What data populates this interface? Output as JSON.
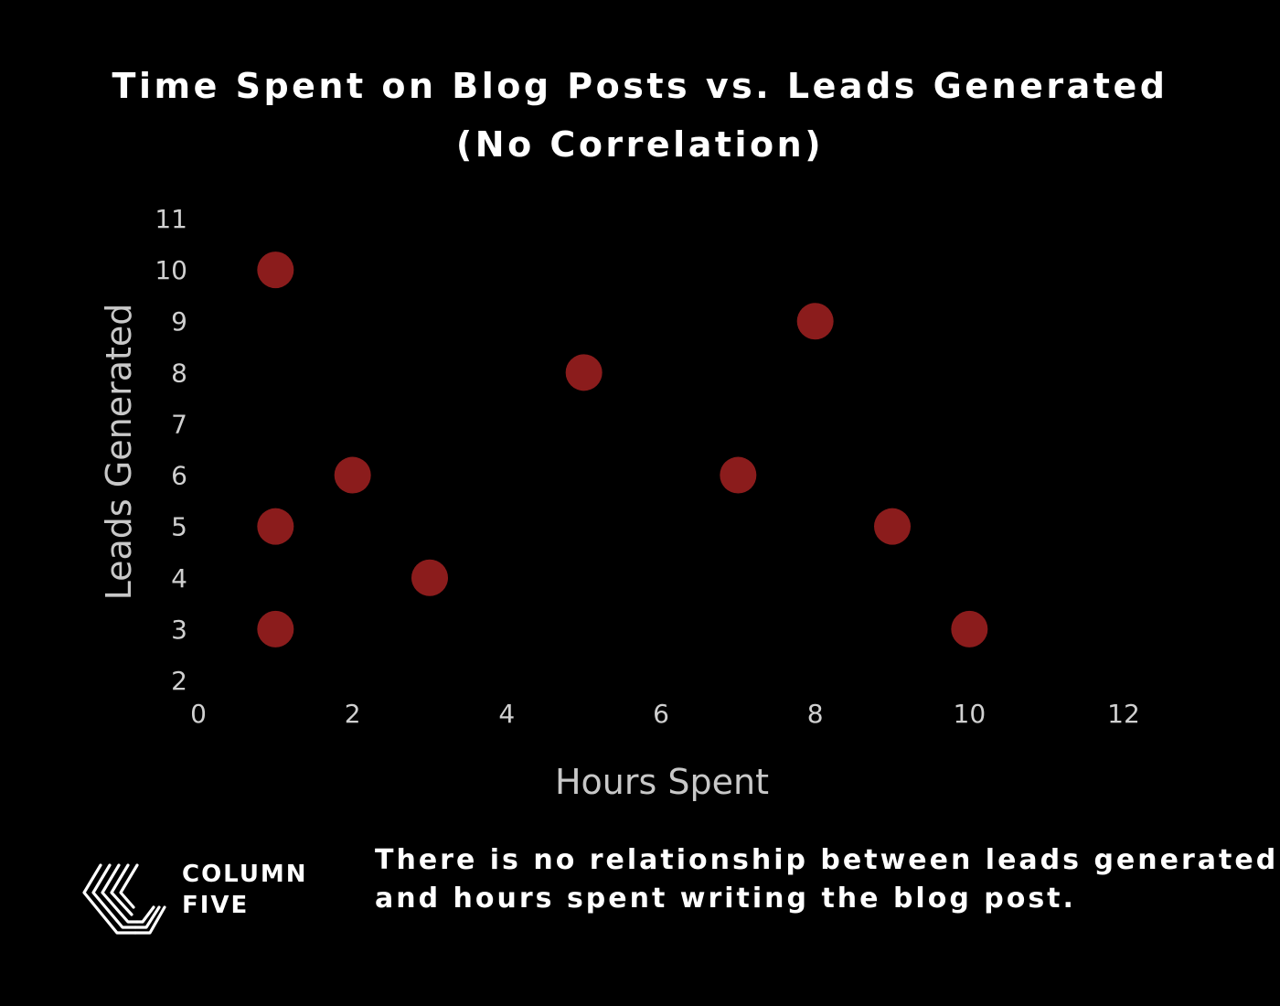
{
  "chart_data": {
    "type": "scatter",
    "title_lines": [
      "Time Spent on Blog Posts vs. Leads Generated",
      "(No Correlation)"
    ],
    "xlabel": "Hours Spent",
    "ylabel": "Leads Generated",
    "xlim": [
      0,
      12
    ],
    "ylim": [
      2,
      11
    ],
    "xticks": [
      "0",
      "2",
      "4",
      "6",
      "8",
      "10",
      "12"
    ],
    "yticks": [
      "2",
      "3",
      "4",
      "5",
      "6",
      "7",
      "8",
      "9",
      "10",
      "11"
    ],
    "grid": false,
    "marker_color": "#8b1c1c",
    "points": [
      {
        "x": 1,
        "y": 10
      },
      {
        "x": 1,
        "y": 5
      },
      {
        "x": 1,
        "y": 3
      },
      {
        "x": 2,
        "y": 6
      },
      {
        "x": 3,
        "y": 4
      },
      {
        "x": 5,
        "y": 8
      },
      {
        "x": 7,
        "y": 6
      },
      {
        "x": 8,
        "y": 9
      },
      {
        "x": 9,
        "y": 5
      },
      {
        "x": 10,
        "y": 3
      }
    ]
  },
  "logo": {
    "icon": "column-five-logo-icon",
    "line1": "COLUMN",
    "line2": "FIVE"
  },
  "caption_lines": [
    "There is no relationship between leads generated",
    "and hours spent writing the blog post."
  ],
  "colors": {
    "background": "#000000",
    "text": "#ffffff",
    "axis_text": "#d0d0d0"
  }
}
